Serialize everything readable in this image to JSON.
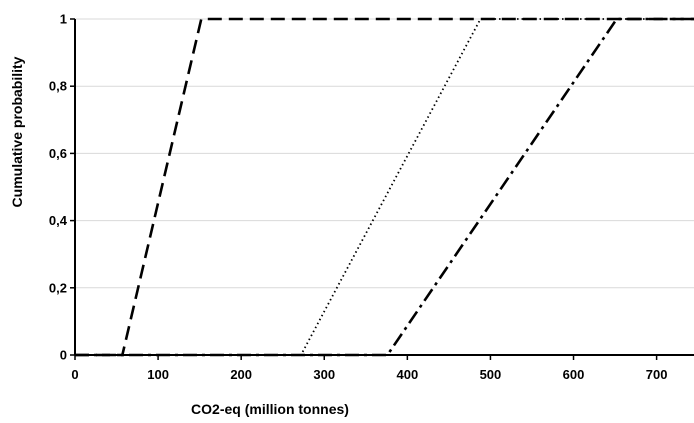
{
  "chart_data": {
    "type": "line",
    "title": "",
    "xlabel": "CO2-eq (million tonnes)",
    "ylabel": "Cumulative probability",
    "xlim": [
      0,
      745
    ],
    "ylim": [
      0,
      1
    ],
    "x_ticks": [
      "0",
      "100",
      "200",
      "300",
      "400",
      "500",
      "600",
      "700"
    ],
    "y_ticks": [
      "0",
      "0,2",
      "0,4",
      "0,6",
      "0,8",
      "1"
    ],
    "grid": "horizontal",
    "legend": "none",
    "series": [
      {
        "style": "dashed",
        "color": "#000000",
        "x": [
          0,
          57,
          152,
          745
        ],
        "y": [
          0,
          0,
          1,
          1
        ]
      },
      {
        "style": "dotted",
        "color": "#000000",
        "x": [
          0,
          272,
          488,
          745
        ],
        "y": [
          0,
          0,
          1,
          1
        ]
      },
      {
        "style": "dash-dot",
        "color": "#000000",
        "x": [
          0,
          376,
          652,
          745
        ],
        "y": [
          0,
          0,
          1,
          1
        ]
      }
    ]
  }
}
